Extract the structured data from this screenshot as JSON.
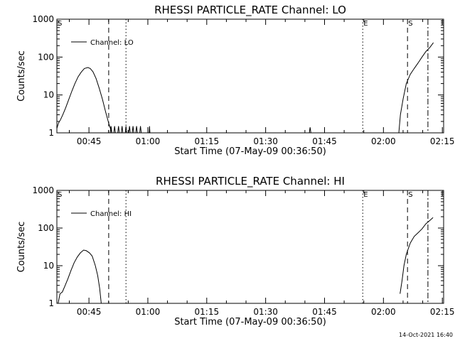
{
  "footer": {
    "timestamp": "14-Oct-2021 16:40"
  },
  "chart_data": [
    {
      "type": "line",
      "title": "RHESSI PARTICLE_RATE Channel: LO",
      "xlabel": "Start Time (07-May-09 00:36:50)",
      "ylabel": "Counts/sec",
      "yscale": "log",
      "ylim": [
        1,
        1000
      ],
      "xlim": [
        0.0,
        98.5
      ],
      "x_units": "minutes since start time",
      "x_ticks": [
        {
          "x": 8.17,
          "label": "00:45"
        },
        {
          "x": 23.17,
          "label": "01:00"
        },
        {
          "x": 38.17,
          "label": "01:15"
        },
        {
          "x": 53.17,
          "label": "01:30"
        },
        {
          "x": 68.17,
          "label": "01:45"
        },
        {
          "x": 83.17,
          "label": "02:00"
        },
        {
          "x": 98.17,
          "label": "02:15"
        }
      ],
      "y_ticks": [
        {
          "y": 1,
          "label": "1"
        },
        {
          "y": 10,
          "label": "10"
        },
        {
          "y": 100,
          "label": "100"
        },
        {
          "y": 1000,
          "label": "1000"
        }
      ],
      "legend": {
        "entries": [
          "Channel: LO"
        ],
        "position": "top-left"
      },
      "vlines": [
        {
          "x": 13.2,
          "style": "dashed",
          "label": ""
        },
        {
          "x": 17.6,
          "style": "dotted",
          "label": ""
        },
        {
          "x": 77.9,
          "style": "dotted",
          "label": "E"
        },
        {
          "x": 89.3,
          "style": "dashed",
          "label": "S"
        },
        {
          "x": 94.5,
          "style": "dashdot",
          "label": ""
        }
      ],
      "corner_marker": "S",
      "series": [
        {
          "name": "Channel: LO",
          "segments": [
            [
              [
                0.0,
                1.3
              ],
              [
                0.4,
                1.8
              ],
              [
                0.9,
                2.2
              ],
              [
                1.5,
                3.0
              ],
              [
                2.2,
                4.5
              ],
              [
                3.0,
                7.5
              ],
              [
                3.8,
                12.5
              ],
              [
                4.6,
                20
              ],
              [
                5.4,
                30
              ],
              [
                6.2,
                40
              ],
              [
                7.0,
                50
              ],
              [
                7.9,
                53
              ],
              [
                8.5,
                50
              ],
              [
                9.2,
                41
              ],
              [
                10.0,
                27
              ],
              [
                10.8,
                15
              ],
              [
                11.6,
                7.7
              ],
              [
                12.4,
                3.6
              ],
              [
                13.2,
                1.8
              ],
              [
                14.0,
                1.0
              ]
            ],
            [
              [
                13.6,
                1.0
              ],
              [
                13.8,
                1.5
              ],
              [
                14.0,
                1.0
              ],
              [
                14.5,
                1.0
              ],
              [
                14.7,
                1.5
              ],
              [
                14.9,
                1.0
              ],
              [
                15.5,
                1.0
              ],
              [
                15.7,
                1.5
              ],
              [
                15.9,
                1.0
              ],
              [
                16.4,
                1.0
              ],
              [
                16.6,
                1.5
              ],
              [
                16.8,
                1.0
              ],
              [
                17.4,
                1.0
              ],
              [
                17.6,
                1.5
              ],
              [
                17.8,
                1.0
              ],
              [
                18.3,
                1.0
              ],
              [
                18.5,
                1.5
              ],
              [
                18.7,
                1.0
              ],
              [
                19.2,
                1.0
              ],
              [
                19.4,
                1.5
              ],
              [
                19.6,
                1.0
              ],
              [
                20.1,
                1.0
              ],
              [
                20.3,
                1.5
              ],
              [
                20.5,
                1.0
              ],
              [
                21.1,
                1.0
              ],
              [
                21.3,
                1.5
              ],
              [
                21.5,
                1.0
              ]
            ],
            [
              [
                23.5,
                1.0
              ],
              [
                23.6,
                1.5
              ],
              [
                23.7,
                1.0
              ]
            ],
            [
              [
                64.3,
                1.0
              ],
              [
                64.5,
                1.4
              ],
              [
                64.7,
                1.0
              ]
            ],
            [
              [
                87.1,
                1.0
              ],
              [
                87.5,
                3.0
              ],
              [
                88.2,
                8.0
              ],
              [
                89.0,
                20
              ],
              [
                90.0,
                35
              ],
              [
                91.0,
                50
              ],
              [
                92.0,
                70
              ],
              [
                93.0,
                100
              ],
              [
                94.0,
                140
              ],
              [
                95.0,
                180
              ],
              [
                95.9,
                240
              ]
            ]
          ]
        }
      ]
    },
    {
      "type": "line",
      "title": "RHESSI PARTICLE_RATE Channel: HI",
      "xlabel": "Start Time (07-May-09 00:36:50)",
      "ylabel": "Counts/sec",
      "yscale": "log",
      "ylim": [
        1,
        1000
      ],
      "xlim": [
        0.0,
        98.5
      ],
      "x_units": "minutes since start time",
      "x_ticks": [
        {
          "x": 8.17,
          "label": "00:45"
        },
        {
          "x": 23.17,
          "label": "01:00"
        },
        {
          "x": 38.17,
          "label": "01:15"
        },
        {
          "x": 53.17,
          "label": "01:30"
        },
        {
          "x": 68.17,
          "label": "01:45"
        },
        {
          "x": 83.17,
          "label": "02:00"
        },
        {
          "x": 98.17,
          "label": "02:15"
        }
      ],
      "y_ticks": [
        {
          "y": 1,
          "label": "1"
        },
        {
          "y": 10,
          "label": "10"
        },
        {
          "y": 100,
          "label": "100"
        },
        {
          "y": 1000,
          "label": "1000"
        }
      ],
      "legend": {
        "entries": [
          "Channel: HI"
        ],
        "position": "top-left"
      },
      "vlines": [
        {
          "x": 13.2,
          "style": "dashed",
          "label": ""
        },
        {
          "x": 17.6,
          "style": "dotted",
          "label": ""
        },
        {
          "x": 77.9,
          "style": "dotted",
          "label": "E"
        },
        {
          "x": 89.3,
          "style": "dashed",
          "label": "S"
        },
        {
          "x": 94.5,
          "style": "dashdot",
          "label": ""
        }
      ],
      "corner_marker": "S",
      "series": [
        {
          "name": "Channel: HI",
          "segments": [
            [
              [
                0.3,
                1.0
              ],
              [
                0.8,
                1.8
              ],
              [
                1.4,
                2.0
              ],
              [
                2.0,
                2.8
              ],
              [
                2.8,
                4.5
              ],
              [
                3.6,
                7.5
              ],
              [
                4.4,
                12
              ],
              [
                5.2,
                17
              ],
              [
                6.0,
                22
              ],
              [
                6.8,
                26
              ],
              [
                7.5,
                25
              ],
              [
                8.3,
                22
              ],
              [
                9.0,
                18
              ],
              [
                9.8,
                10
              ],
              [
                10.4,
                5.5
              ],
              [
                10.9,
                2.5
              ],
              [
                11.3,
                1.0
              ]
            ],
            [
              [
                87.4,
                1.8
              ],
              [
                87.9,
                4
              ],
              [
                88.4,
                10
              ],
              [
                89.0,
                20
              ],
              [
                90.0,
                40
              ],
              [
                91.0,
                60
              ],
              [
                92.0,
                75
              ],
              [
                93.0,
                95
              ],
              [
                94.0,
                130
              ],
              [
                95.0,
                160
              ],
              [
                95.8,
                190
              ]
            ]
          ]
        }
      ]
    }
  ]
}
